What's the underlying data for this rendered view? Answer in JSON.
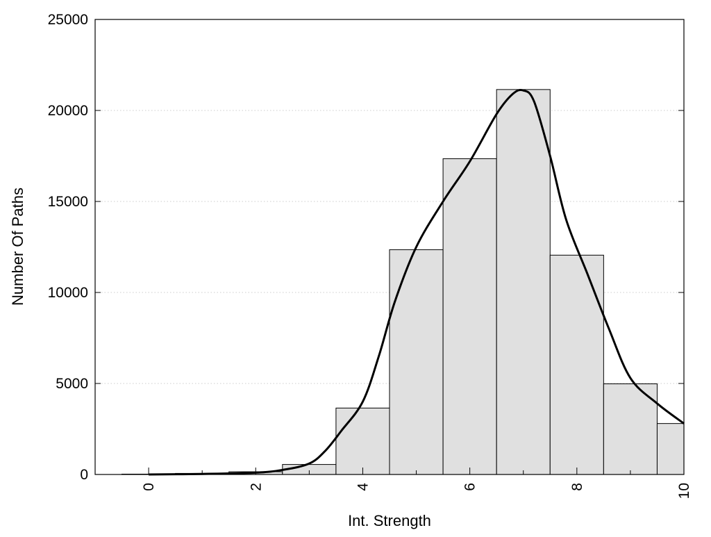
{
  "chart_data": {
    "type": "bar",
    "title": "",
    "xlabel": "Int. Strength",
    "ylabel": "Number Of Paths",
    "xlim": [
      -1,
      10
    ],
    "ylim": [
      0,
      25000
    ],
    "x_ticks": [
      "0",
      "2",
      "4",
      "6",
      "8",
      "10"
    ],
    "x_tick_values": [
      0,
      2,
      4,
      6,
      8,
      10
    ],
    "y_ticks": [
      "0",
      "5000",
      "10000",
      "15000",
      "20000",
      "25000"
    ],
    "y_tick_values": [
      0,
      5000,
      10000,
      15000,
      20000,
      25000
    ],
    "grid": "horizontal dotted",
    "legend": "none",
    "bars": {
      "centers": [
        0,
        1,
        2,
        3,
        4,
        5,
        6,
        7,
        8,
        9,
        10
      ],
      "values": [
        20,
        60,
        150,
        550,
        3650,
        12350,
        17350,
        21150,
        12050,
        4980,
        2800
      ],
      "fill_color": "#e0e0e0",
      "edge_color": "#000000"
    },
    "density_curve": {
      "x": [
        0,
        1,
        2,
        2.5,
        3,
        3.3,
        3.6,
        4,
        4.3,
        4.6,
        5,
        5.5,
        6,
        6.5,
        6.8,
        7,
        7.2,
        7.5,
        7.8,
        8.2,
        8.6,
        9,
        9.5,
        10
      ],
      "y": [
        0,
        30,
        100,
        250,
        600,
        1300,
        2400,
        4000,
        6500,
        9500,
        12500,
        15000,
        17200,
        19800,
        20900,
        21100,
        20500,
        17500,
        14000,
        11000,
        8000,
        5300,
        3900,
        2800
      ],
      "color": "#000000"
    }
  }
}
